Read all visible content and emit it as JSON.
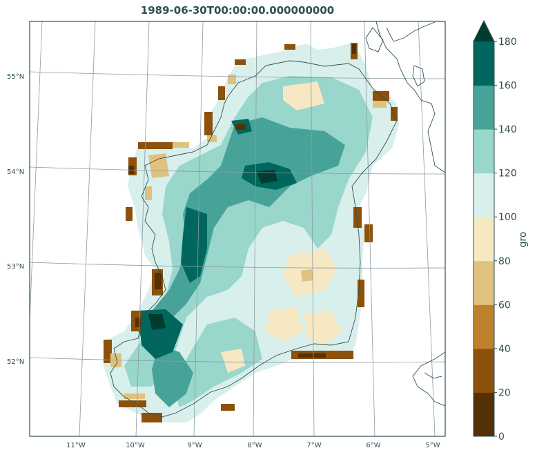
{
  "title": "1989-06-30T00:00:00.000000000",
  "colorbar": {
    "label": "gro",
    "ticks": [
      "0",
      "20",
      "40",
      "60",
      "80",
      "100",
      "120",
      "140",
      "160",
      "180"
    ],
    "colors": [
      "#543005",
      "#8c510a",
      "#bf812d",
      "#dfc27d",
      "#f6e8c3",
      "#d8efec",
      "#99d6cc",
      "#47a398",
      "#01665e",
      "#003c30"
    ],
    "extend": "max"
  },
  "lat_labels": [
    "55°N",
    "54°N",
    "53°N",
    "52°N"
  ],
  "lon_labels": [
    "11°W",
    "10°W",
    "9°W",
    "8°W",
    "7°W",
    "6°W",
    "5°W"
  ],
  "theme_colors": {
    "frame": "#2f4f4f",
    "grid": "#8a99a6",
    "coast": "#2f4f4f"
  }
}
